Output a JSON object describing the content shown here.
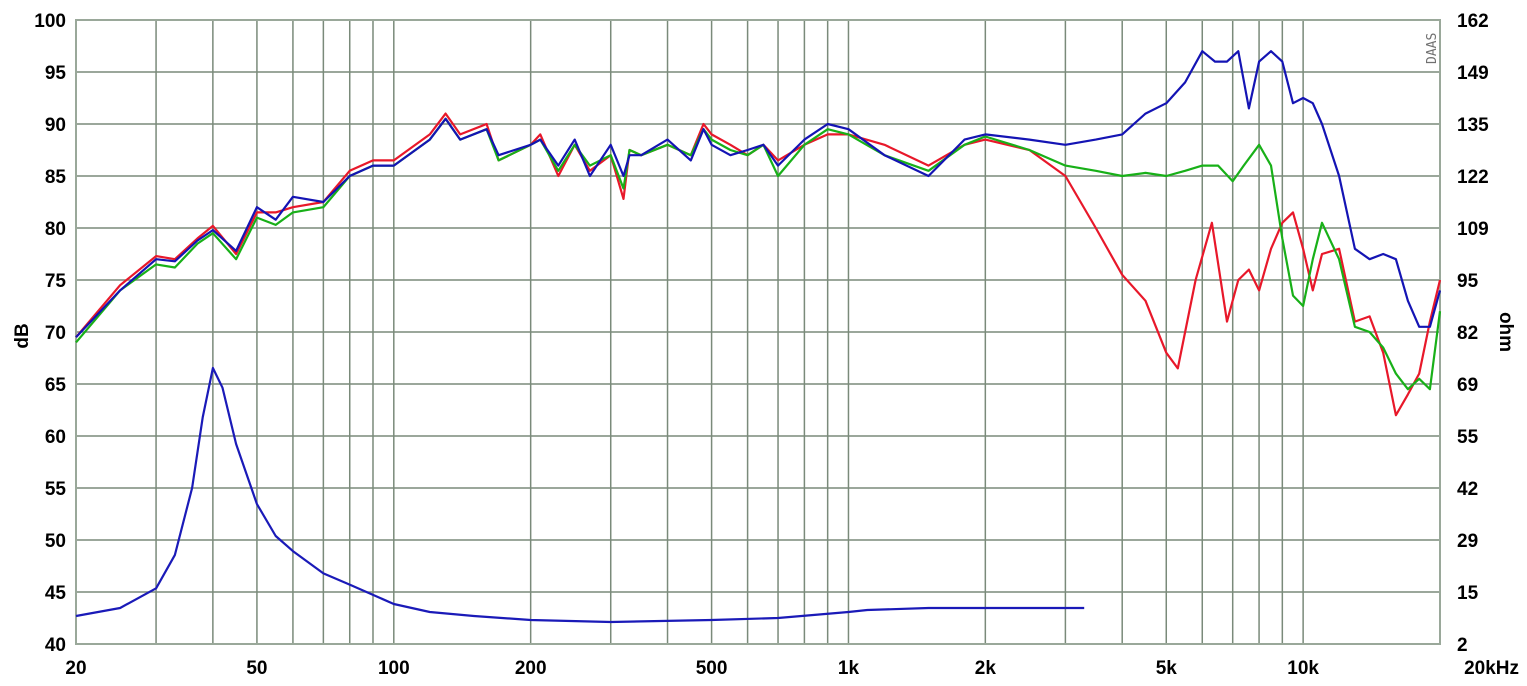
{
  "chart_data": {
    "type": "line",
    "title": "",
    "watermark": "DAAS",
    "xlabel": "",
    "x_scale": "log",
    "xlim": [
      20,
      20000
    ],
    "x_ticks": [
      {
        "value": 20,
        "label": "20"
      },
      {
        "value": 50,
        "label": "50"
      },
      {
        "value": 100,
        "label": "100"
      },
      {
        "value": 200,
        "label": "200"
      },
      {
        "value": 500,
        "label": "500"
      },
      {
        "value": 1000,
        "label": "1k"
      },
      {
        "value": 2000,
        "label": "2k"
      },
      {
        "value": 5000,
        "label": "5k"
      },
      {
        "value": 10000,
        "label": "10k"
      },
      {
        "value": 20000,
        "label": "20kHz"
      }
    ],
    "y_left": {
      "label": "dB",
      "range": [
        40,
        100
      ],
      "ticks": [
        "40",
        "45",
        "50",
        "55",
        "60",
        "65",
        "70",
        "75",
        "80",
        "85",
        "90",
        "95",
        "100"
      ]
    },
    "y_right": {
      "label": "ohm",
      "ticks": [
        "2",
        "15",
        "29",
        "42",
        "55",
        "69",
        "82",
        "95",
        "109",
        "122",
        "135",
        "149",
        "162"
      ]
    },
    "grid": true,
    "colors": {
      "background": "#ffffff",
      "grid": "#7a8a7a",
      "frame": "#9aa89a",
      "red": "#e8182a",
      "green": "#18b018",
      "blue": "#1414b4",
      "impedance": "#1a1ab8"
    },
    "series": [
      {
        "color_key": "red",
        "axis": "left",
        "x": [
          20,
          25,
          30,
          33,
          37,
          40,
          45,
          50,
          55,
          60,
          70,
          80,
          90,
          100,
          120,
          130,
          140,
          160,
          170,
          200,
          210,
          230,
          250,
          270,
          300,
          320,
          330,
          350,
          400,
          450,
          480,
          500,
          550,
          600,
          650,
          700,
          800,
          900,
          1000,
          1200,
          1500,
          1800,
          2000,
          2500,
          3000,
          3500,
          4000,
          4500,
          5000,
          5300,
          5800,
          6300,
          6800,
          7200,
          7600,
          8000,
          8500,
          9000,
          9500,
          10000,
          10500,
          11000,
          12000,
          13000,
          14000,
          15000,
          16000,
          17000,
          18000,
          19000,
          20000
        ],
        "y": [
          69.5,
          74.5,
          77.3,
          77.0,
          79.0,
          80.2,
          77.5,
          81.5,
          81.5,
          82.0,
          82.5,
          85.5,
          86.5,
          86.5,
          89.0,
          91.0,
          89.0,
          90.0,
          86.5,
          88.0,
          89.0,
          85.0,
          88.0,
          85.5,
          87.0,
          82.8,
          87.5,
          87.0,
          88.0,
          87.0,
          90.0,
          89.0,
          88.0,
          87.0,
          88.0,
          86.5,
          88.0,
          89.0,
          89.0,
          88.0,
          86.0,
          88.0,
          88.5,
          87.5,
          85.0,
          80.0,
          75.5,
          73.0,
          68.0,
          66.5,
          75.0,
          80.5,
          71.0,
          75.0,
          76.0,
          74.0,
          78.0,
          80.5,
          81.5,
          78.0,
          74.0,
          77.5,
          78.0,
          71.0,
          71.5,
          68.0,
          62.0,
          64.0,
          66.0,
          71.0,
          75.0
        ]
      },
      {
        "color_key": "green",
        "axis": "left",
        "x": [
          20,
          25,
          30,
          33,
          37,
          40,
          45,
          50,
          55,
          60,
          70,
          80,
          90,
          100,
          120,
          130,
          140,
          160,
          170,
          200,
          210,
          230,
          250,
          270,
          300,
          320,
          330,
          350,
          400,
          450,
          480,
          500,
          550,
          600,
          650,
          700,
          800,
          900,
          1000,
          1200,
          1500,
          1800,
          2000,
          2500,
          3000,
          3500,
          4000,
          4500,
          5000,
          5500,
          6000,
          6500,
          7000,
          7400,
          8000,
          8500,
          9000,
          9500,
          10000,
          10500,
          11000,
          12000,
          13000,
          14000,
          15000,
          16000,
          17000,
          18000,
          19000,
          20000
        ],
        "y": [
          69.0,
          74.0,
          76.5,
          76.2,
          78.5,
          79.5,
          77.0,
          81.0,
          80.3,
          81.5,
          82.0,
          85.0,
          86.0,
          86.0,
          88.5,
          90.5,
          88.5,
          89.5,
          86.5,
          88.0,
          88.5,
          85.5,
          88.0,
          86.0,
          87.0,
          83.8,
          87.5,
          87.0,
          88.0,
          87.0,
          89.5,
          88.5,
          87.5,
          87.0,
          88.0,
          85.0,
          88.0,
          89.5,
          89.0,
          87.0,
          85.5,
          88.0,
          88.8,
          87.5,
          86.0,
          85.5,
          85.0,
          85.3,
          85.0,
          85.5,
          86.0,
          86.0,
          84.5,
          86.0,
          88.0,
          86.0,
          79.0,
          73.5,
          72.5,
          77.0,
          80.5,
          77.0,
          70.5,
          70.0,
          68.5,
          66.0,
          64.5,
          65.5,
          64.5,
          72.0
        ]
      },
      {
        "color_key": "blue",
        "axis": "left",
        "x": [
          20,
          25,
          30,
          33,
          37,
          40,
          45,
          50,
          55,
          60,
          70,
          80,
          90,
          100,
          120,
          130,
          140,
          160,
          170,
          200,
          210,
          230,
          250,
          270,
          300,
          320,
          330,
          350,
          400,
          450,
          480,
          500,
          550,
          600,
          650,
          700,
          800,
          900,
          1000,
          1200,
          1500,
          1800,
          2000,
          2500,
          3000,
          3500,
          4000,
          4500,
          5000,
          5500,
          6000,
          6400,
          6800,
          7200,
          7600,
          8000,
          8500,
          9000,
          9500,
          10000,
          10500,
          11000,
          12000,
          13000,
          14000,
          15000,
          16000,
          17000,
          18000,
          19000,
          20000
        ],
        "y": [
          69.5,
          74.0,
          77.0,
          76.8,
          78.8,
          79.8,
          77.8,
          82.0,
          80.8,
          83.0,
          82.5,
          85.0,
          86.0,
          86.0,
          88.5,
          90.5,
          88.5,
          89.5,
          87.0,
          88.0,
          88.5,
          86.0,
          88.5,
          85.0,
          88.0,
          85.0,
          87.0,
          87.0,
          88.5,
          86.5,
          89.5,
          88.0,
          87.0,
          87.5,
          88.0,
          86.0,
          88.5,
          90.0,
          89.5,
          87.0,
          85.0,
          88.5,
          89.0,
          88.5,
          88.0,
          88.5,
          89.0,
          91.0,
          92.0,
          94.0,
          97.0,
          96.0,
          96.0,
          97.0,
          91.5,
          96.0,
          97.0,
          96.0,
          92.0,
          92.5,
          92.0,
          90.0,
          85.0,
          78.0,
          77.0,
          77.5,
          77.0,
          73.0,
          70.5,
          70.5,
          74.0
        ]
      },
      {
        "color_key": "impedance",
        "axis": "right",
        "x": [
          20,
          25,
          30,
          33,
          36,
          38,
          40,
          42,
          45,
          50,
          55,
          60,
          70,
          80,
          100,
          120,
          150,
          200,
          300,
          500,
          700,
          1000,
          1100,
          1500,
          2000,
          3000,
          3300
        ],
        "y": [
          9,
          11,
          16,
          25,
          42,
          60,
          73,
          68,
          53,
          38,
          30,
          26,
          20,
          17,
          12,
          10,
          9,
          8,
          7.5,
          8,
          8.5,
          10,
          10.5,
          11,
          11,
          11,
          11
        ]
      }
    ]
  }
}
